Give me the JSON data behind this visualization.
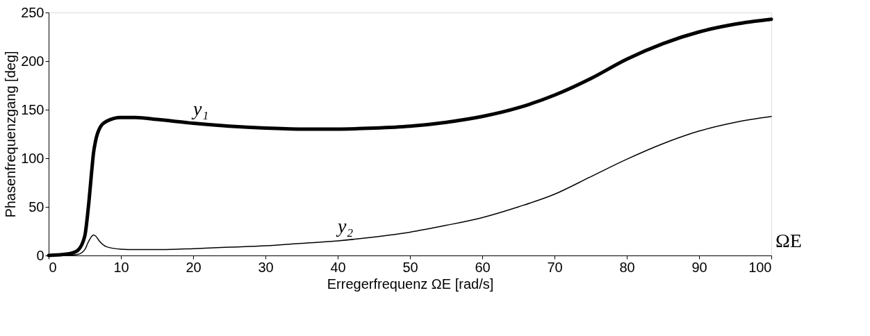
{
  "chart_data": {
    "type": "line",
    "xlabel": "Erregerfrequenz ΩE  [rad/s]",
    "ylabel": "Phasenfrequenzgang [deg]",
    "xlim": [
      0,
      100
    ],
    "xticks": [
      0,
      10,
      20,
      30,
      40,
      50,
      60,
      70,
      80,
      90,
      100
    ],
    "ylim": [
      0,
      250
    ],
    "yticks": [
      0,
      50,
      100,
      150,
      200,
      250
    ],
    "grid": false,
    "legend": false,
    "marker": "none",
    "line_style": "solid",
    "x": [
      0,
      2,
      3,
      4,
      5,
      5.5,
      6,
      6.2,
      6.5,
      7,
      8,
      10,
      12,
      15,
      20,
      25,
      30,
      35,
      40,
      45,
      50,
      55,
      60,
      65,
      70,
      75,
      80,
      85,
      90,
      95,
      100
    ],
    "series": [
      {
        "name": "y₁",
        "color": "#000000",
        "values": [
          0,
          1,
          2,
          5,
          20,
          50,
          90,
          105,
          118,
          130,
          138,
          142,
          142,
          140,
          136,
          133,
          131,
          130,
          130,
          131,
          133,
          137,
          143,
          152,
          165,
          182,
          202,
          218,
          230,
          238,
          243
        ]
      },
      {
        "name": "y₂",
        "color": "#000000",
        "values": [
          0,
          0.1,
          0.3,
          1,
          6,
          14,
          20,
          21,
          20,
          15,
          9,
          6.5,
          6,
          6,
          7,
          8.5,
          10,
          12.5,
          15,
          19,
          24,
          31,
          39,
          50,
          63,
          81,
          99,
          115,
          128,
          137,
          143
        ]
      }
    ],
    "annotations": [
      "ΩE"
    ]
  }
}
